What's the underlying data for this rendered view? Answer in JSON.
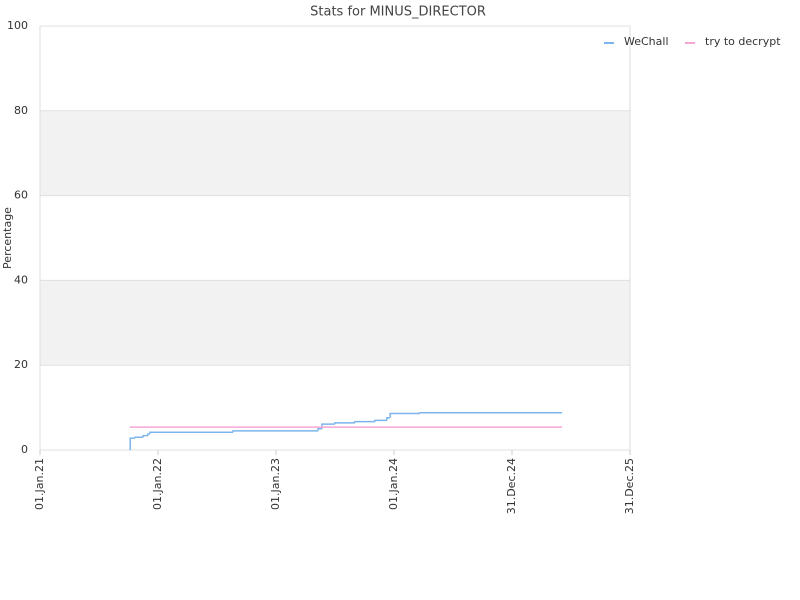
{
  "chart_data": {
    "type": "line",
    "step": true,
    "title": "Stats for MINUS_DIRECTOR",
    "y_label": "Percentage",
    "xlim": [
      "2021-01-01",
      "2025-12-31"
    ],
    "xticks": [
      {
        "value": "2021-01-01",
        "label": "01.Jan.21"
      },
      {
        "value": "2022-01-01",
        "label": "01.Jan.22"
      },
      {
        "value": "2023-01-01",
        "label": "01.Jan.23"
      },
      {
        "value": "2024-01-01",
        "label": "01.Jan.24"
      },
      {
        "value": "2024-12-31",
        "label": "31.Dec.24"
      },
      {
        "value": "2025-12-31",
        "label": "31.Dec.25"
      }
    ],
    "ylim": [
      0,
      100
    ],
    "yticks": [
      0,
      20,
      40,
      60,
      80,
      100
    ],
    "grid": true,
    "legend": "top-right",
    "series": [
      {
        "name": "WeChall",
        "color": "#7cb5ec",
        "x": [
          "2021-10-06",
          "2021-10-07",
          "2021-10-22",
          "2021-11-16",
          "2021-12-01",
          "2021-12-07",
          "2022-08-21",
          "2023-05-11",
          "2023-05-23",
          "2023-07-02",
          "2023-09-02",
          "2023-11-03",
          "2023-12-10",
          "2023-12-20",
          "2024-03-21",
          "2025-06-04"
        ],
        "values": [
          0,
          2.8,
          3.0,
          3.4,
          3.8,
          4.2,
          4.5,
          5.0,
          6.1,
          6.4,
          6.7,
          7.0,
          7.6,
          8.6,
          8.8,
          8.8
        ]
      },
      {
        "name": "try to decrypt",
        "color": "#f7a6d4",
        "x": [
          "2021-10-06",
          "2025-06-04"
        ],
        "values": [
          5.4,
          5.4
        ]
      }
    ]
  }
}
